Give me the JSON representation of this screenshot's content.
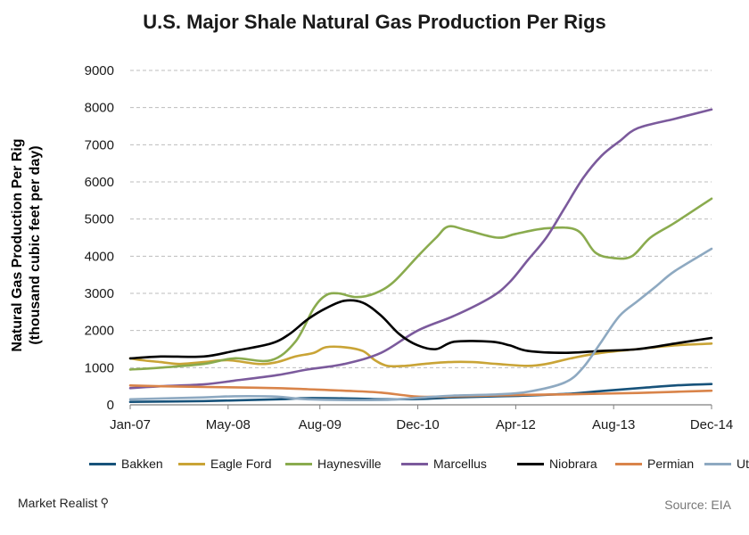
{
  "chart_data": {
    "type": "line",
    "title": "U.S. Major Shale Natural Gas Production Per Rigs",
    "ylabel_line1": "Natural Gas Production Per Rig",
    "ylabel_line2": "(thousand cubic feet per day)",
    "xlabel": "",
    "ylim": [
      0,
      9000
    ],
    "yticks": [
      "0",
      "1000",
      "2000",
      "3000",
      "4000",
      "5000",
      "6000",
      "7000",
      "8000",
      "9000"
    ],
    "xlim": [
      "2007-01",
      "2014-12"
    ],
    "xticks": [
      {
        "label": "Jan-07",
        "date": "2007-01"
      },
      {
        "label": "May-08",
        "date": "2008-05"
      },
      {
        "label": "Aug-09",
        "date": "2009-08"
      },
      {
        "label": "Dec-10",
        "date": "2010-12"
      },
      {
        "label": "Apr-12",
        "date": "2012-04"
      },
      {
        "label": "Aug-13",
        "date": "2013-08"
      },
      {
        "label": "Dec-14",
        "date": "2014-12"
      }
    ],
    "grid": "horizontal",
    "legend_position": "bottom",
    "series": [
      {
        "name": "Bakken",
        "color": "#17527a",
        "points": [
          [
            "2007-01",
            80
          ],
          [
            "2008-01",
            100
          ],
          [
            "2009-01",
            150
          ],
          [
            "2009-06",
            180
          ],
          [
            "2010-01",
            170
          ],
          [
            "2010-06",
            150
          ],
          [
            "2011-01",
            160
          ],
          [
            "2011-06",
            200
          ],
          [
            "2012-01",
            230
          ],
          [
            "2012-06",
            250
          ],
          [
            "2013-01",
            300
          ],
          [
            "2013-06",
            370
          ],
          [
            "2014-01",
            460
          ],
          [
            "2014-06",
            520
          ],
          [
            "2014-12",
            560
          ]
        ]
      },
      {
        "name": "Eagle Ford",
        "color": "#c9a436",
        "points": [
          [
            "2007-01",
            1250
          ],
          [
            "2007-03",
            1200
          ],
          [
            "2007-06",
            1150
          ],
          [
            "2007-09",
            1100
          ],
          [
            "2008-01",
            1150
          ],
          [
            "2008-05",
            1200
          ],
          [
            "2008-10",
            1100
          ],
          [
            "2009-01",
            1150
          ],
          [
            "2009-04",
            1300
          ],
          [
            "2009-07",
            1400
          ],
          [
            "2009-09",
            1550
          ],
          [
            "2009-12",
            1550
          ],
          [
            "2010-03",
            1450
          ],
          [
            "2010-05",
            1200
          ],
          [
            "2010-07",
            1050
          ],
          [
            "2010-10",
            1050
          ],
          [
            "2011-01",
            1100
          ],
          [
            "2011-05",
            1150
          ],
          [
            "2011-09",
            1150
          ],
          [
            "2012-01",
            1100
          ],
          [
            "2012-06",
            1050
          ],
          [
            "2012-09",
            1100
          ],
          [
            "2013-01",
            1250
          ],
          [
            "2013-06",
            1400
          ],
          [
            "2013-12",
            1500
          ],
          [
            "2014-06",
            1600
          ],
          [
            "2014-12",
            1650
          ]
        ]
      },
      {
        "name": "Haynesville",
        "color": "#8aab4e",
        "points": [
          [
            "2007-01",
            950
          ],
          [
            "2007-06",
            1000
          ],
          [
            "2008-01",
            1100
          ],
          [
            "2008-06",
            1250
          ],
          [
            "2008-12",
            1200
          ],
          [
            "2009-04",
            1700
          ],
          [
            "2009-07",
            2600
          ],
          [
            "2009-09",
            2950
          ],
          [
            "2009-11",
            3000
          ],
          [
            "2010-02",
            2900
          ],
          [
            "2010-05",
            3000
          ],
          [
            "2010-08",
            3300
          ],
          [
            "2010-12",
            4000
          ],
          [
            "2011-03",
            4500
          ],
          [
            "2011-05",
            4800
          ],
          [
            "2011-08",
            4700
          ],
          [
            "2012-01",
            4500
          ],
          [
            "2012-04",
            4600
          ],
          [
            "2012-09",
            4750
          ],
          [
            "2013-02",
            4700
          ],
          [
            "2013-05",
            4100
          ],
          [
            "2013-08",
            3950
          ],
          [
            "2013-11",
            4000
          ],
          [
            "2014-02",
            4500
          ],
          [
            "2014-06",
            4900
          ],
          [
            "2014-12",
            5550
          ]
        ]
      },
      {
        "name": "Marcellus",
        "color": "#7b5a9c",
        "points": [
          [
            "2007-01",
            450
          ],
          [
            "2007-06",
            500
          ],
          [
            "2008-01",
            550
          ],
          [
            "2008-06",
            650
          ],
          [
            "2009-01",
            800
          ],
          [
            "2009-06",
            950
          ],
          [
            "2009-12",
            1100
          ],
          [
            "2010-06",
            1400
          ],
          [
            "2010-12",
            2000
          ],
          [
            "2011-06",
            2400
          ],
          [
            "2011-12",
            2900
          ],
          [
            "2012-03",
            3300
          ],
          [
            "2012-06",
            3900
          ],
          [
            "2012-09",
            4500
          ],
          [
            "2012-12",
            5300
          ],
          [
            "2013-03",
            6100
          ],
          [
            "2013-06",
            6700
          ],
          [
            "2013-09",
            7100
          ],
          [
            "2013-12",
            7450
          ],
          [
            "2014-06",
            7700
          ],
          [
            "2014-12",
            7950
          ]
        ]
      },
      {
        "name": "Niobrara",
        "color": "#000000",
        "points": [
          [
            "2007-01",
            1250
          ],
          [
            "2007-06",
            1300
          ],
          [
            "2008-01",
            1300
          ],
          [
            "2008-06",
            1450
          ],
          [
            "2008-12",
            1650
          ],
          [
            "2009-03",
            1900
          ],
          [
            "2009-06",
            2300
          ],
          [
            "2009-09",
            2600
          ],
          [
            "2009-12",
            2800
          ],
          [
            "2010-03",
            2750
          ],
          [
            "2010-06",
            2400
          ],
          [
            "2010-09",
            1900
          ],
          [
            "2010-12",
            1600
          ],
          [
            "2011-03",
            1500
          ],
          [
            "2011-06",
            1700
          ],
          [
            "2011-12",
            1700
          ],
          [
            "2012-03",
            1600
          ],
          [
            "2012-06",
            1450
          ],
          [
            "2012-12",
            1400
          ],
          [
            "2013-06",
            1450
          ],
          [
            "2013-12",
            1500
          ],
          [
            "2014-06",
            1650
          ],
          [
            "2014-12",
            1800
          ]
        ]
      },
      {
        "name": "Permian",
        "color": "#d9844a",
        "points": [
          [
            "2007-01",
            520
          ],
          [
            "2007-06",
            500
          ],
          [
            "2008-01",
            480
          ],
          [
            "2008-06",
            470
          ],
          [
            "2009-01",
            450
          ],
          [
            "2009-06",
            420
          ],
          [
            "2009-12",
            380
          ],
          [
            "2010-06",
            330
          ],
          [
            "2010-12",
            220
          ],
          [
            "2011-06",
            230
          ],
          [
            "2011-12",
            250
          ],
          [
            "2012-06",
            270
          ],
          [
            "2012-12",
            280
          ],
          [
            "2013-06",
            300
          ],
          [
            "2013-12",
            320
          ],
          [
            "2014-06",
            350
          ],
          [
            "2014-12",
            380
          ]
        ]
      },
      {
        "name": "Utica",
        "color": "#8ea9c1",
        "points": [
          [
            "2007-01",
            150
          ],
          [
            "2008-01",
            200
          ],
          [
            "2008-06",
            230
          ],
          [
            "2009-01",
            220
          ],
          [
            "2009-06",
            150
          ],
          [
            "2010-06",
            130
          ],
          [
            "2011-01",
            200
          ],
          [
            "2011-06",
            250
          ],
          [
            "2012-01",
            280
          ],
          [
            "2012-06",
            350
          ],
          [
            "2012-12",
            600
          ],
          [
            "2013-03",
            1000
          ],
          [
            "2013-06",
            1700
          ],
          [
            "2013-09",
            2400
          ],
          [
            "2013-12",
            2800
          ],
          [
            "2014-03",
            3200
          ],
          [
            "2014-06",
            3600
          ],
          [
            "2014-12",
            4200
          ]
        ]
      }
    ]
  },
  "footer": {
    "brand": "Market Realist",
    "source": "Source: EIA"
  }
}
